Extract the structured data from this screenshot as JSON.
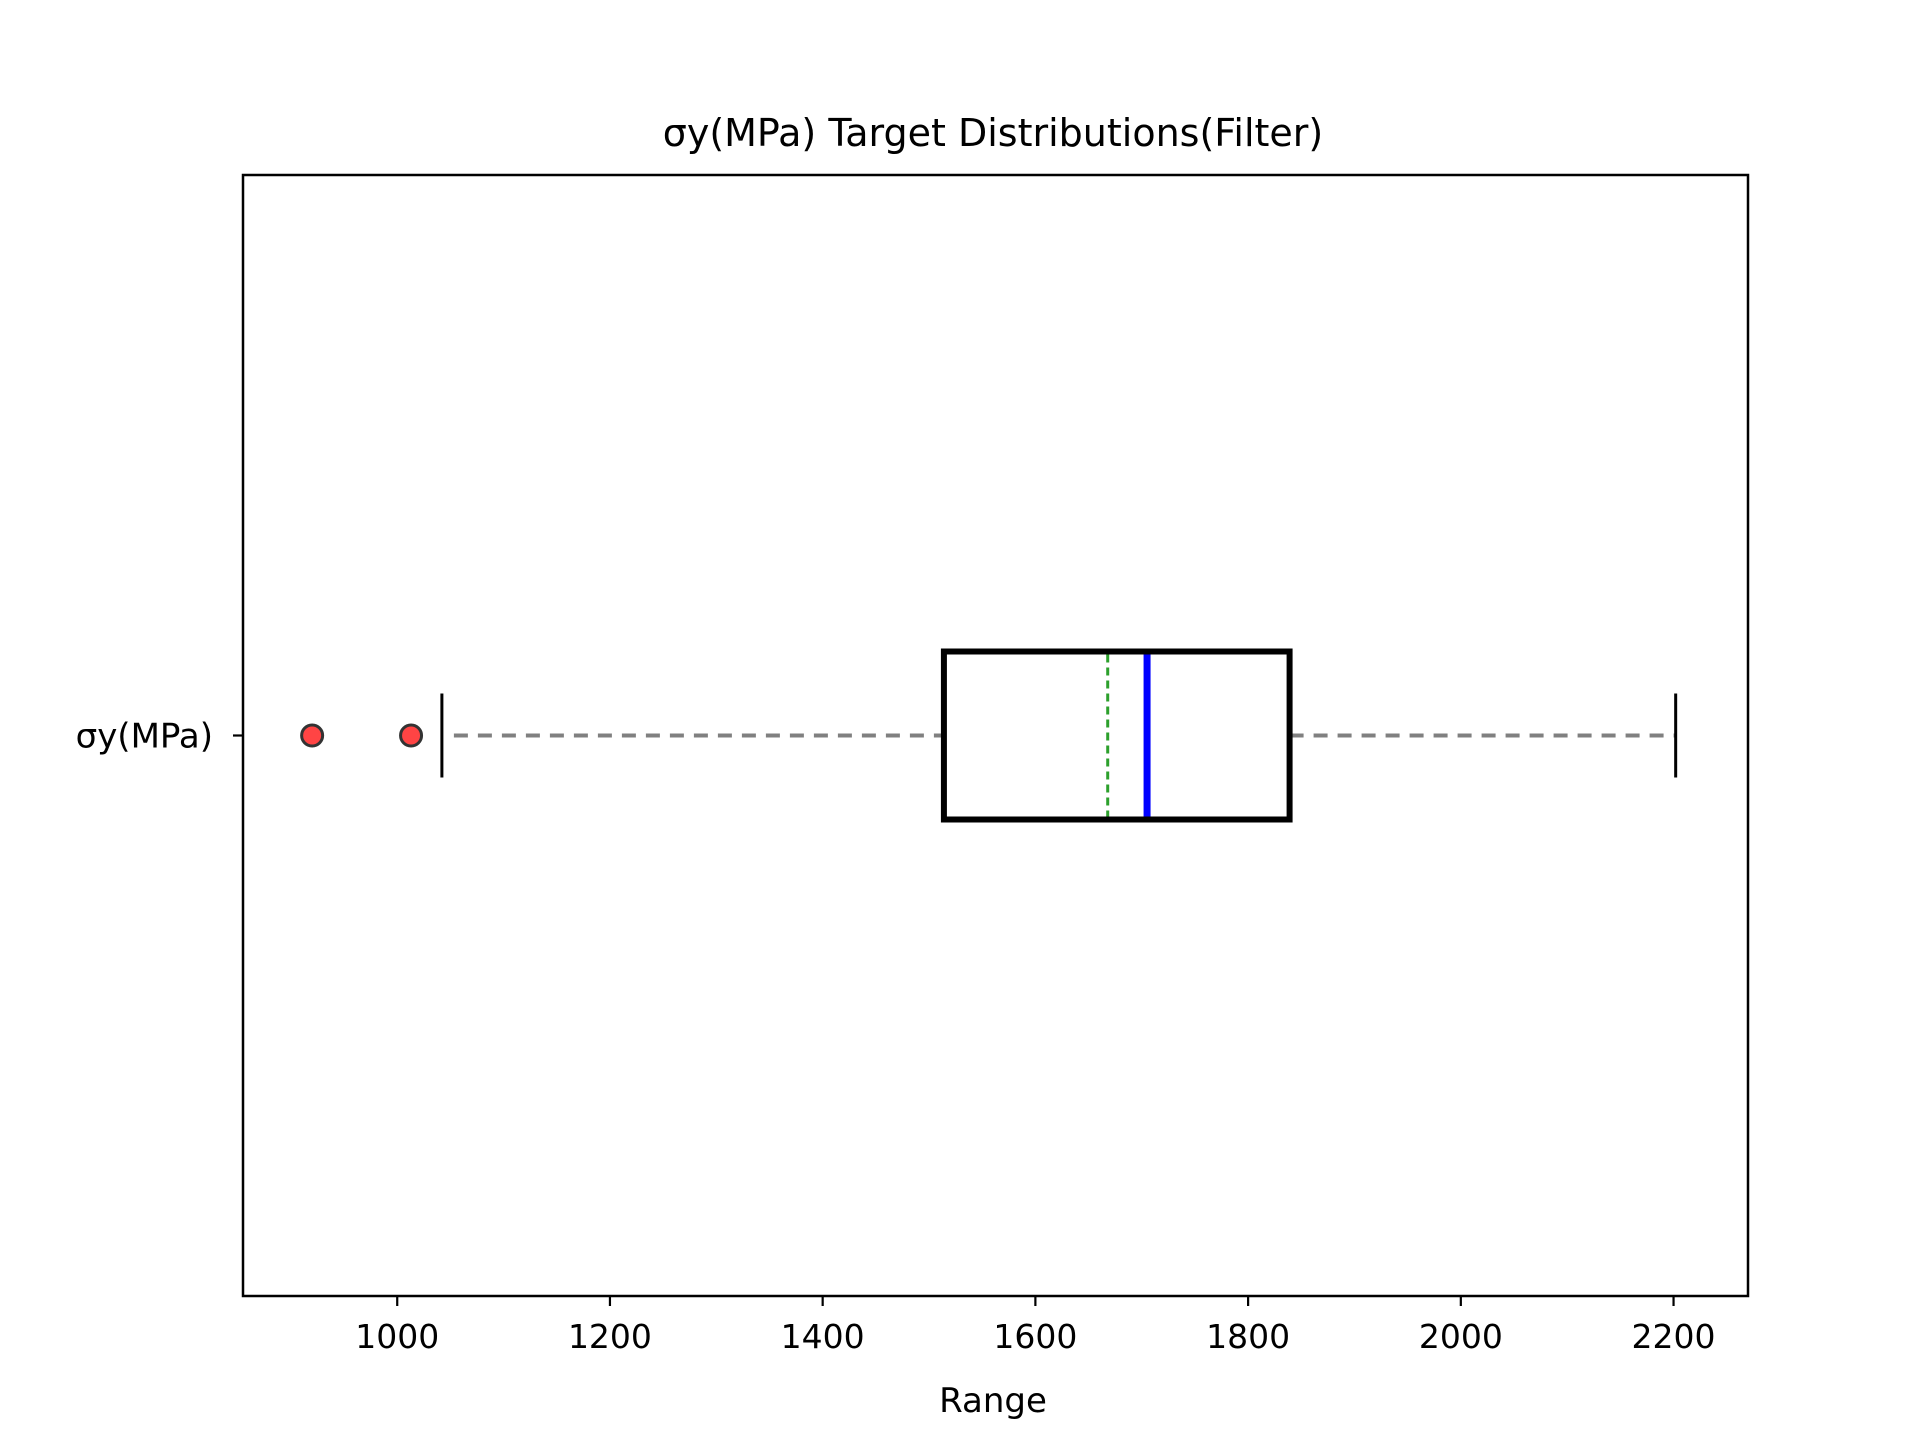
{
  "chart_data": {
    "type": "boxplot",
    "orientation": "horizontal",
    "title": "σy(MPa) Target Distributions(Filter)",
    "xlabel": "Range",
    "ylabel": "",
    "xlim": [
      855,
      2270
    ],
    "xticks": [
      1000,
      1200,
      1400,
      1600,
      1800,
      2000,
      2200
    ],
    "xtick_labels": [
      "1000",
      "1200",
      "1400",
      "1600",
      "1800",
      "2000",
      "2200"
    ],
    "categories": [
      "σy(MPa)"
    ],
    "series": [
      {
        "whisker_low": 1042,
        "q1": 1514,
        "median": 1705,
        "mean": 1668,
        "q3": 1839,
        "whisker_high": 2202,
        "outliers": [
          920,
          1013
        ]
      }
    ],
    "grid": false,
    "colors": {
      "box": "#000000",
      "median": "#0000ff",
      "mean": "#2ca02c",
      "whisker": "#808080",
      "cap": "#000000",
      "outlier_fill": "#ff4444",
      "outlier_edge": "#333333"
    }
  }
}
